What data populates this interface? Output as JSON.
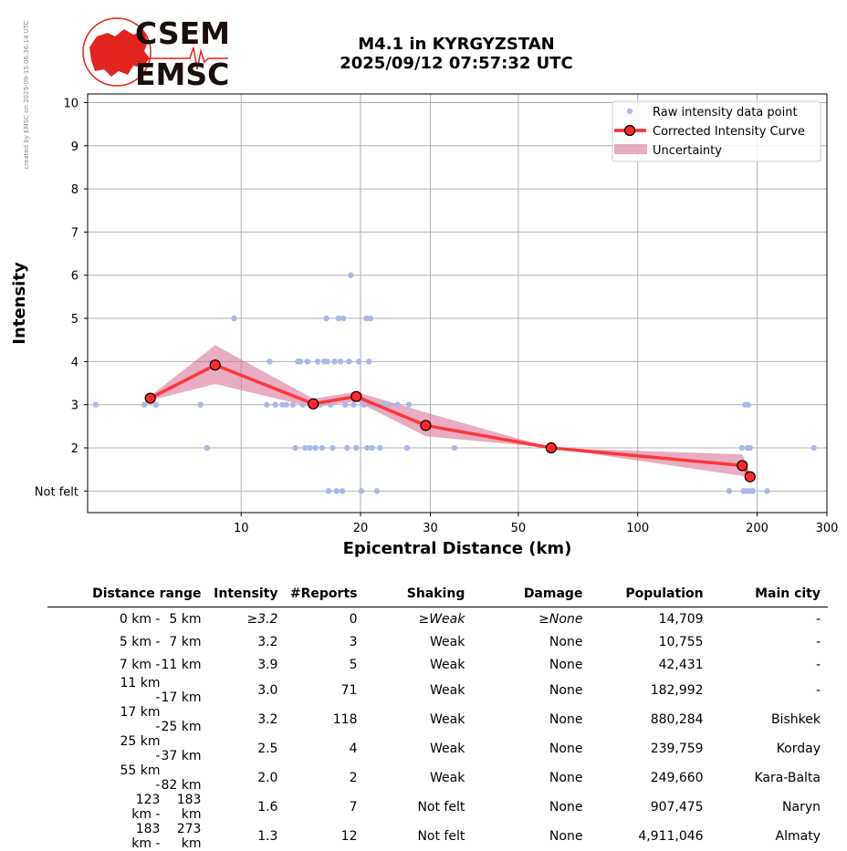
{
  "watermark": "created by EMSC on 2025-09-15 06:36:14 UTC",
  "logo": {
    "line1": "CSEM",
    "line2": "EMSC"
  },
  "title": {
    "line1": "M4.1 in KYRGYZSTAN",
    "line2": "2025/09/12 07:57:32 UTC"
  },
  "colors": {
    "raw": "#a9b8e8",
    "curve": "#ff2a2a",
    "marker_edge": "#000000",
    "band": "#d9759b",
    "logo_red": "#e3231d"
  },
  "chart_data": {
    "type": "scatter",
    "xlabel": "Epicentral Distance (km)",
    "ylabel": "Intensity",
    "x_scale": "log",
    "xlim": [
      4.1,
      300
    ],
    "ylim": [
      0.5,
      10.2
    ],
    "x_ticks": [
      10,
      20,
      30,
      50,
      100,
      200,
      300
    ],
    "y_ticks": [
      {
        "value": 1,
        "label": "Not felt"
      },
      {
        "value": 2,
        "label": "2"
      },
      {
        "value": 3,
        "label": "3"
      },
      {
        "value": 4,
        "label": "4"
      },
      {
        "value": 5,
        "label": "5"
      },
      {
        "value": 6,
        "label": "6"
      },
      {
        "value": 7,
        "label": "7"
      },
      {
        "value": 8,
        "label": "8"
      },
      {
        "value": 9,
        "label": "9"
      },
      {
        "value": 10,
        "label": "10"
      }
    ],
    "grid": true,
    "legend_position": "top-right",
    "legend": [
      "Raw intensity data point",
      "Corrected Intensity Curve",
      "Uncertainty"
    ],
    "raw_points": [
      [
        4.3,
        3
      ],
      [
        5.7,
        3
      ],
      [
        6.1,
        3
      ],
      [
        7.9,
        3
      ],
      [
        8.2,
        2
      ],
      [
        9.6,
        5
      ],
      [
        11.6,
        3
      ],
      [
        11.8,
        4
      ],
      [
        12.2,
        3
      ],
      [
        12.7,
        3
      ],
      [
        13.0,
        3
      ],
      [
        13.5,
        3
      ],
      [
        13.7,
        2
      ],
      [
        13.9,
        4
      ],
      [
        14.1,
        4
      ],
      [
        14.3,
        3
      ],
      [
        14.5,
        2
      ],
      [
        14.7,
        4
      ],
      [
        14.9,
        2
      ],
      [
        15.2,
        3
      ],
      [
        15.4,
        2
      ],
      [
        15.6,
        4
      ],
      [
        15.8,
        3
      ],
      [
        16.0,
        2
      ],
      [
        16.2,
        4
      ],
      [
        16.4,
        5
      ],
      [
        16.5,
        4
      ],
      [
        16.6,
        1
      ],
      [
        16.8,
        3
      ],
      [
        17.0,
        2
      ],
      [
        17.2,
        4
      ],
      [
        17.4,
        1
      ],
      [
        17.6,
        5
      ],
      [
        17.8,
        4
      ],
      [
        18.0,
        1
      ],
      [
        18.1,
        5
      ],
      [
        18.3,
        3
      ],
      [
        18.5,
        2
      ],
      [
        18.7,
        4
      ],
      [
        18.9,
        6
      ],
      [
        19.2,
        3
      ],
      [
        19.5,
        2
      ],
      [
        19.8,
        4
      ],
      [
        20.1,
        1
      ],
      [
        20.4,
        3
      ],
      [
        20.7,
        5
      ],
      [
        20.8,
        2
      ],
      [
        21.0,
        4
      ],
      [
        21.2,
        5
      ],
      [
        21.4,
        2
      ],
      [
        21.6,
        3
      ],
      [
        22.0,
        1
      ],
      [
        22.4,
        2
      ],
      [
        22.8,
        3
      ],
      [
        23.5,
        3
      ],
      [
        24.8,
        3
      ],
      [
        26.2,
        2
      ],
      [
        26.5,
        3
      ],
      [
        34.5,
        2
      ],
      [
        170.0,
        1
      ],
      [
        183.0,
        2
      ],
      [
        185.0,
        1
      ],
      [
        186.5,
        3
      ],
      [
        188.0,
        1
      ],
      [
        189.0,
        2
      ],
      [
        190.0,
        3
      ],
      [
        191.0,
        1
      ],
      [
        192.0,
        2
      ],
      [
        193.0,
        1
      ],
      [
        195.0,
        1
      ],
      [
        212.0,
        1
      ],
      [
        278.0,
        2
      ]
    ],
    "series": [
      {
        "name": "Corrected Intensity Curve",
        "x": [
          5.9,
          8.6,
          15.2,
          19.5,
          29.2,
          60.5,
          183.5,
          192.0
        ],
        "y": [
          3.15,
          3.92,
          3.02,
          3.19,
          2.52,
          2.0,
          1.59,
          1.33
        ]
      },
      {
        "name": "Uncertainty",
        "x": [
          5.9,
          8.6,
          15.2,
          19.5,
          29.2,
          60.5,
          183.5,
          192.0
        ],
        "y_upper": [
          3.2,
          4.38,
          3.14,
          3.3,
          2.82,
          2.0,
          1.85,
          1.42
        ],
        "y_lower": [
          3.1,
          3.48,
          2.94,
          3.08,
          2.27,
          2.0,
          1.35,
          1.25
        ]
      }
    ]
  },
  "table": {
    "headers": [
      "Distance range",
      "Intensity",
      "#Reports",
      "Shaking",
      "Damage",
      "Population",
      "Main city"
    ],
    "rows": [
      {
        "lo": "0 km -",
        "hi": "5 km",
        "intensity": "≥3.2",
        "reports": "0",
        "shaking": "≥Weak",
        "damage": "≥None",
        "population": "14,709",
        "city": "-"
      },
      {
        "lo": "5 km -",
        "hi": "7 km",
        "intensity": "3.2",
        "reports": "3",
        "shaking": "Weak",
        "damage": "None",
        "population": "10,755",
        "city": "-"
      },
      {
        "lo": "7 km -",
        "hi": "11 km",
        "intensity": "3.9",
        "reports": "5",
        "shaking": "Weak",
        "damage": "None",
        "population": "42,431",
        "city": "-"
      },
      {
        "lo": "11 km -",
        "hi": "17 km",
        "intensity": "3.0",
        "reports": "71",
        "shaking": "Weak",
        "damage": "None",
        "population": "182,992",
        "city": "-"
      },
      {
        "lo": "17 km -",
        "hi": "25 km",
        "intensity": "3.2",
        "reports": "118",
        "shaking": "Weak",
        "damage": "None",
        "population": "880,284",
        "city": "Bishkek"
      },
      {
        "lo": "25 km -",
        "hi": "37 km",
        "intensity": "2.5",
        "reports": "4",
        "shaking": "Weak",
        "damage": "None",
        "population": "239,759",
        "city": "Korday"
      },
      {
        "lo": "55 km -",
        "hi": "82 km",
        "intensity": "2.0",
        "reports": "2",
        "shaking": "Weak",
        "damage": "None",
        "population": "249,660",
        "city": "Kara-Balta"
      },
      {
        "lo": "123 km -",
        "hi": "183 km",
        "intensity": "1.6",
        "reports": "7",
        "shaking": "Not felt",
        "damage": "None",
        "population": "907,475",
        "city": "Naryn"
      },
      {
        "lo": "183 km -",
        "hi": "273 km",
        "intensity": "1.3",
        "reports": "12",
        "shaking": "Not felt",
        "damage": "None",
        "population": "4,911,046",
        "city": "Almaty"
      }
    ]
  }
}
